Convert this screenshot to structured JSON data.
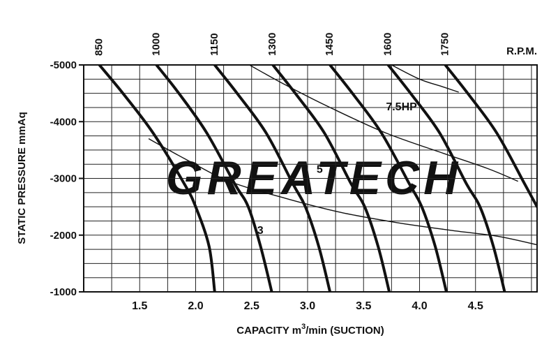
{
  "chart_data": {
    "type": "line",
    "watermark": "GREATECH",
    "xlabel": "CAPACITY m³/min (SUCTION)",
    "xlabel_parts": {
      "pre": "CAPACITY m",
      "sup": "3",
      "post": "/min (SUCTION)"
    },
    "ylabel": "STATIC PRESSURE mmAq",
    "xlim": [
      1.0,
      5.05
    ],
    "ylim": [
      -1000,
      -5000
    ],
    "grid": true,
    "x_ticks": [
      {
        "value": 1.5,
        "label": "1.5"
      },
      {
        "value": 2.0,
        "label": "2.0"
      },
      {
        "value": 2.5,
        "label": "2.5"
      },
      {
        "value": 3.0,
        "label": "3.0"
      },
      {
        "value": 3.5,
        "label": "3.5"
      },
      {
        "value": 4.0,
        "label": "4.0"
      },
      {
        "value": 4.5,
        "label": "4.5"
      }
    ],
    "y_ticks": [
      {
        "value": -5000,
        "label": "-5000"
      },
      {
        "value": -4000,
        "label": "-4000"
      },
      {
        "value": -3000,
        "label": "-3000"
      },
      {
        "value": -2000,
        "label": "-2000"
      },
      {
        "value": -1000,
        "label": "-1000"
      }
    ],
    "rpm_unit": "R.P.M.",
    "rpm_curves": [
      {
        "name": "850",
        "points": [
          [
            1.14,
            -5000
          ],
          [
            1.35,
            -4500
          ],
          [
            1.62,
            -3800
          ],
          [
            1.9,
            -2900
          ],
          [
            2.0,
            -2500
          ],
          [
            2.12,
            -1800
          ],
          [
            2.17,
            -1000
          ]
        ]
      },
      {
        "name": "1000",
        "points": [
          [
            1.65,
            -5000
          ],
          [
            1.85,
            -4500
          ],
          [
            2.1,
            -3800
          ],
          [
            2.35,
            -2900
          ],
          [
            2.47,
            -2500
          ],
          [
            2.58,
            -1800
          ],
          [
            2.68,
            -1000
          ]
        ]
      },
      {
        "name": "1150",
        "points": [
          [
            2.17,
            -5000
          ],
          [
            2.37,
            -4500
          ],
          [
            2.63,
            -3800
          ],
          [
            2.87,
            -2900
          ],
          [
            2.98,
            -2500
          ],
          [
            3.1,
            -1800
          ],
          [
            3.2,
            -1000
          ]
        ]
      },
      {
        "name": "1300",
        "points": [
          [
            2.69,
            -5000
          ],
          [
            2.89,
            -4500
          ],
          [
            3.15,
            -3800
          ],
          [
            3.39,
            -2900
          ],
          [
            3.51,
            -2500
          ],
          [
            3.63,
            -1800
          ],
          [
            3.73,
            -1000
          ]
        ]
      },
      {
        "name": "1450",
        "points": [
          [
            3.2,
            -5000
          ],
          [
            3.4,
            -4500
          ],
          [
            3.66,
            -3800
          ],
          [
            3.91,
            -2900
          ],
          [
            4.02,
            -2500
          ],
          [
            4.14,
            -1800
          ],
          [
            4.24,
            -1000
          ]
        ]
      },
      {
        "name": "1600",
        "points": [
          [
            3.72,
            -5000
          ],
          [
            3.92,
            -4500
          ],
          [
            4.18,
            -3800
          ],
          [
            4.42,
            -2900
          ],
          [
            4.54,
            -2500
          ],
          [
            4.66,
            -1800
          ],
          [
            4.76,
            -1000
          ]
        ]
      },
      {
        "name": "1750",
        "points": [
          [
            4.23,
            -5000
          ],
          [
            4.43,
            -4500
          ],
          [
            4.69,
            -3800
          ],
          [
            4.94,
            -2900
          ],
          [
            5.05,
            -2500
          ]
        ]
      }
    ],
    "hp_curves": [
      {
        "name": "7.5HP",
        "points": [
          [
            2.48,
            -5000
          ],
          [
            2.8,
            -4650
          ],
          [
            3.2,
            -4250
          ],
          [
            3.7,
            -3800
          ],
          [
            4.2,
            -3450
          ],
          [
            4.6,
            -3180
          ],
          [
            4.88,
            -2950
          ]
        ]
      },
      {
        "name": "5",
        "points": [
          [
            1.58,
            -3700
          ],
          [
            1.9,
            -3350
          ],
          [
            2.3,
            -2950
          ],
          [
            2.8,
            -2650
          ],
          [
            3.3,
            -2400
          ],
          [
            3.8,
            -2220
          ],
          [
            4.3,
            -2080
          ],
          [
            4.7,
            -1980
          ],
          [
            5.05,
            -1830
          ]
        ]
      },
      {
        "name": "",
        "points": [
          [
            3.75,
            -5000
          ],
          [
            4.0,
            -4750
          ],
          [
            4.2,
            -4620
          ],
          [
            4.35,
            -4520
          ]
        ]
      }
    ],
    "hp_labels": [
      {
        "text": "7.5HP",
        "x": 3.7,
        "y": -4200
      },
      {
        "text": "5",
        "x": 3.08,
        "y": -3100
      },
      {
        "text": "3",
        "x": 2.55,
        "y": -2020
      }
    ]
  }
}
